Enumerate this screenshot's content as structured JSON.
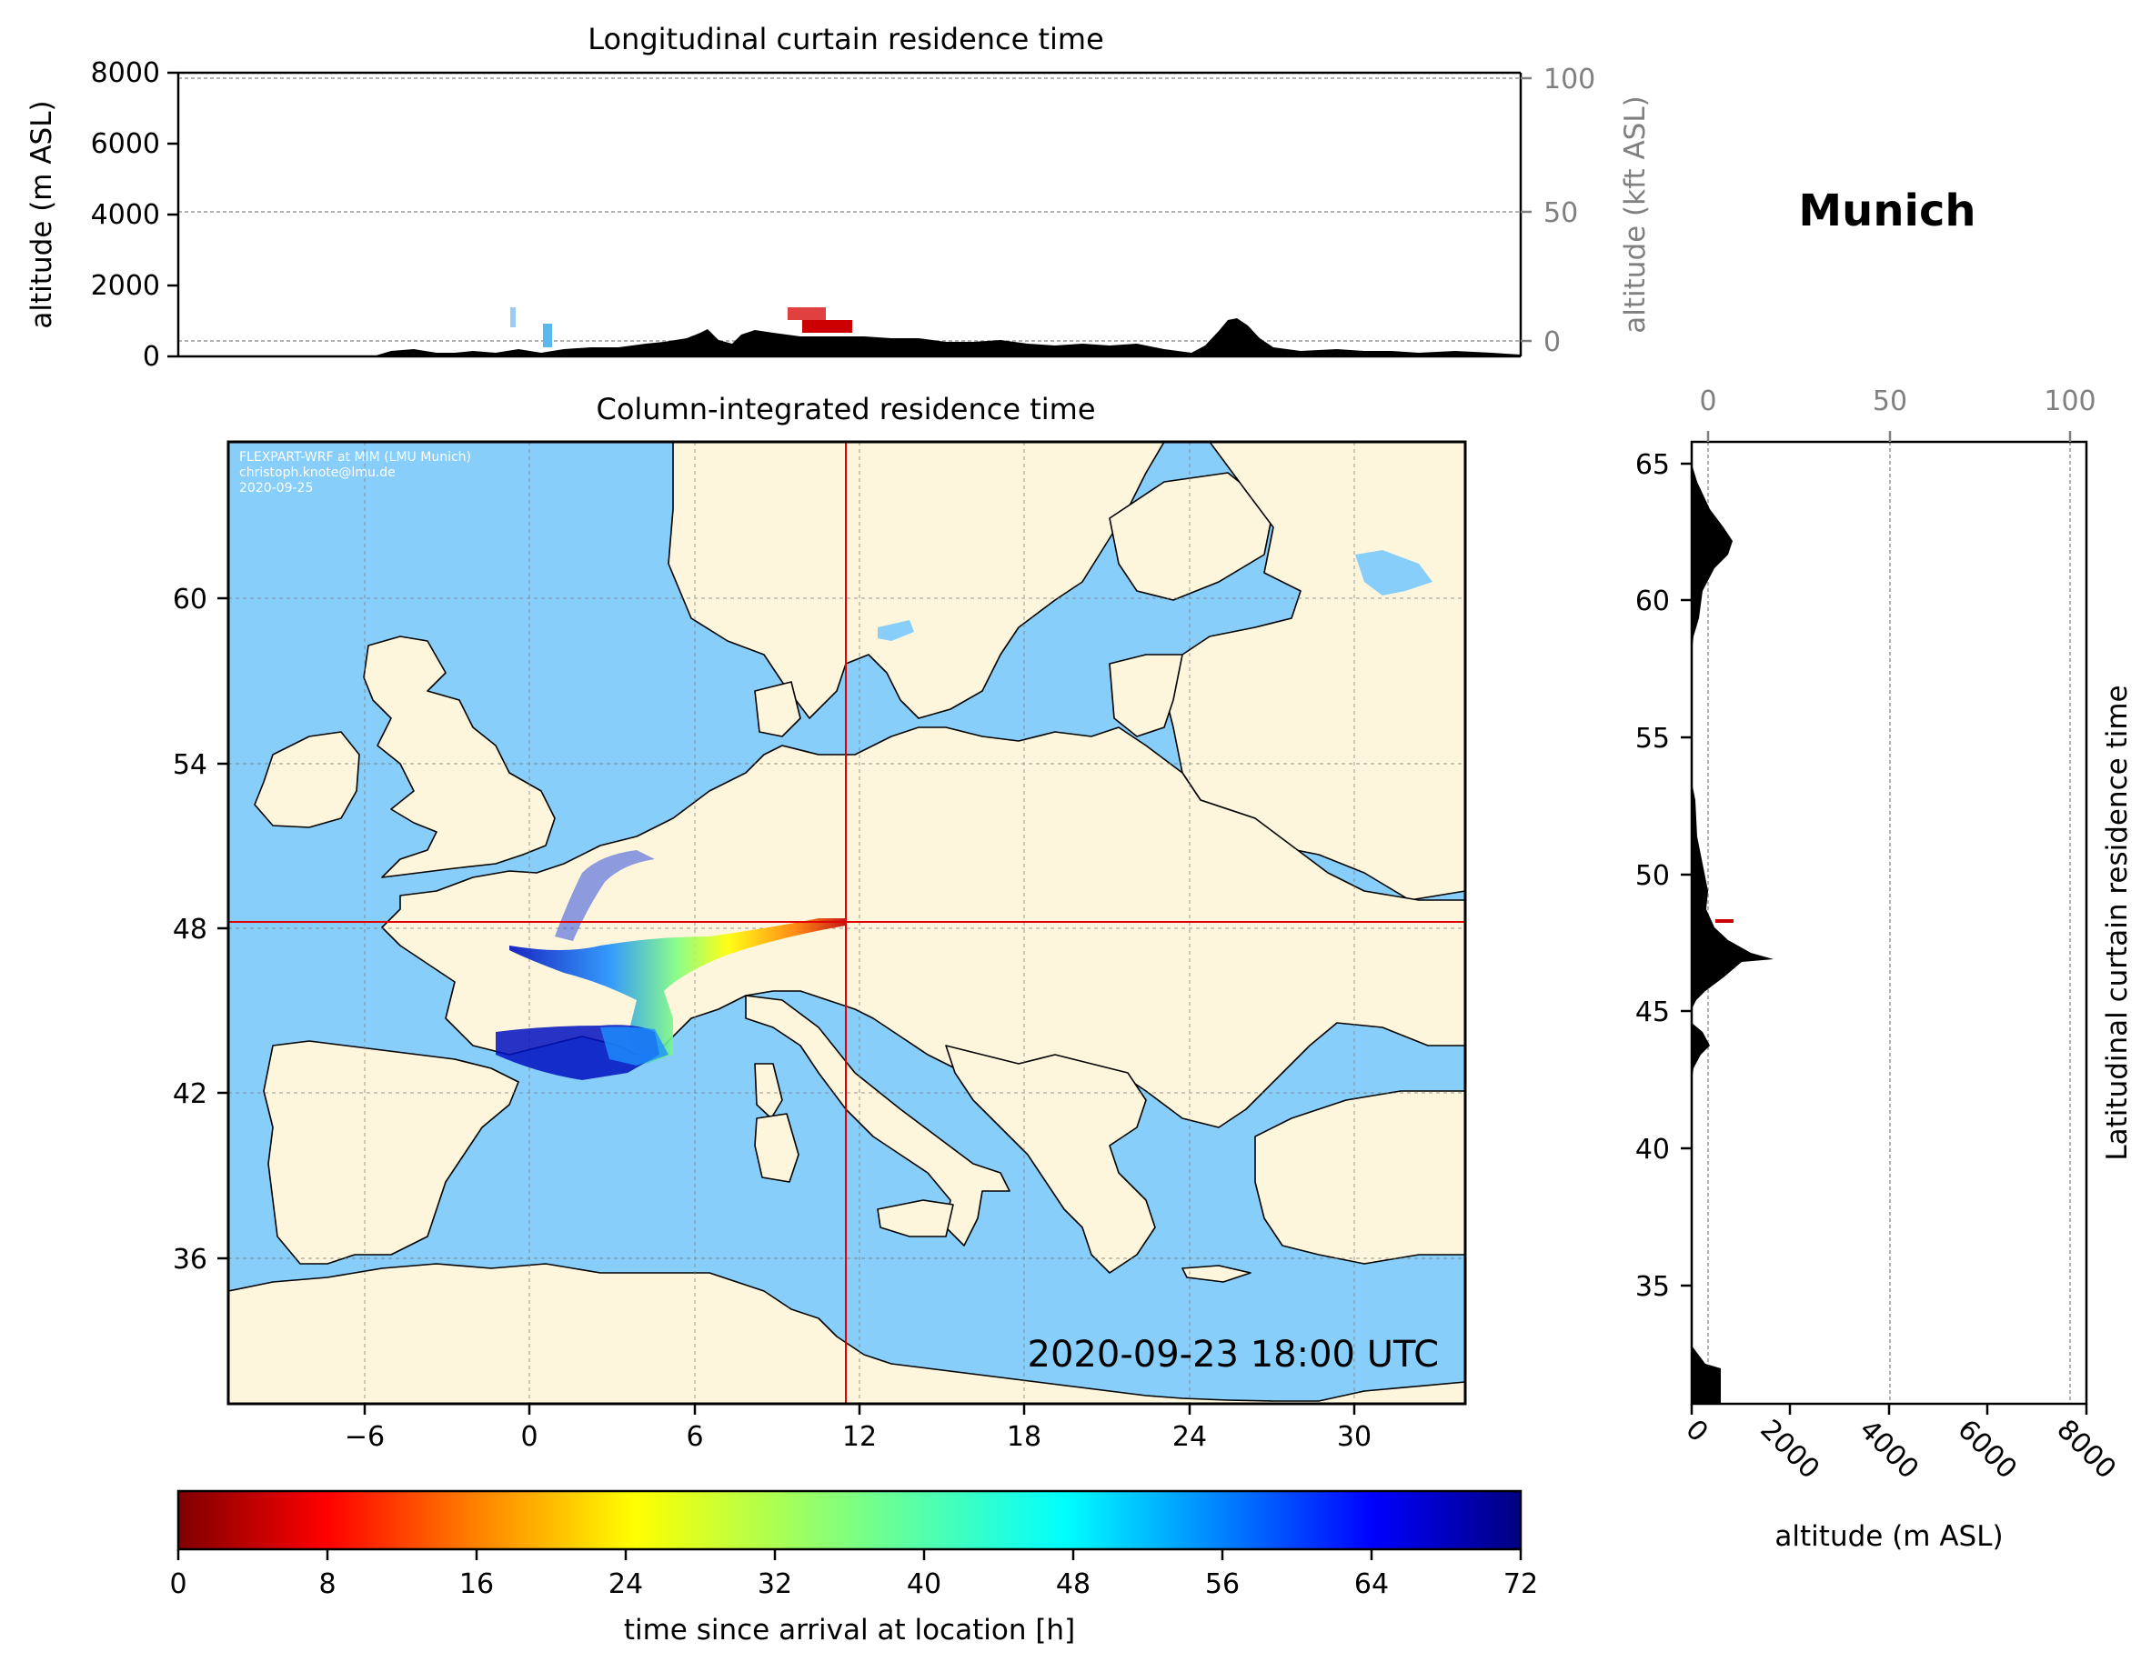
{
  "location": "Munich",
  "colors": {
    "ocean": "#87cefa",
    "land": "#fef6dc",
    "terrain": "#000000",
    "crosshair": "#e00000",
    "axis_grey": "#808080"
  },
  "top_panel": {
    "title": "Longitudinal curtain residence time",
    "ylabel_left": "altitude (m ASL)",
    "ylabel_right": "altitude (kft ASL)",
    "left_ticks": [
      "0",
      "2000",
      "4000",
      "6000",
      "8000"
    ],
    "right_ticks": [
      "0",
      "50",
      "100"
    ]
  },
  "map_panel": {
    "title": "Column-integrated residence time",
    "credit_lines": [
      "FLEXPART-WRF at MIM (LMU Munich)",
      "christoph.knote@lmu.de",
      "2020-09-25"
    ],
    "timestamp": "2020-09-23 18:00 UTC",
    "x_ticks": [
      "−6",
      "0",
      "6",
      "12",
      "18",
      "24",
      "30"
    ],
    "y_ticks": [
      "60",
      "54",
      "48",
      "42",
      "36"
    ],
    "release_point": {
      "lon": 11.6,
      "lat": 48.1
    }
  },
  "right_panel": {
    "ylabel": "Latitudinal curtain residence time",
    "xlabel": "altitude (m ASL)",
    "top_ticks": [
      "0",
      "50",
      "100"
    ],
    "bottom_ticks": [
      "0",
      "2000",
      "4000",
      "6000",
      "8000"
    ],
    "lat_ticks": [
      "65",
      "60",
      "55",
      "50",
      "45",
      "40",
      "35"
    ]
  },
  "colorbar": {
    "label": "time since arrival at location [h]",
    "ticks": [
      "0",
      "8",
      "16",
      "24",
      "32",
      "40",
      "48",
      "56",
      "64",
      "72"
    ],
    "range": [
      0,
      72
    ],
    "colormap": "jet_r"
  }
}
